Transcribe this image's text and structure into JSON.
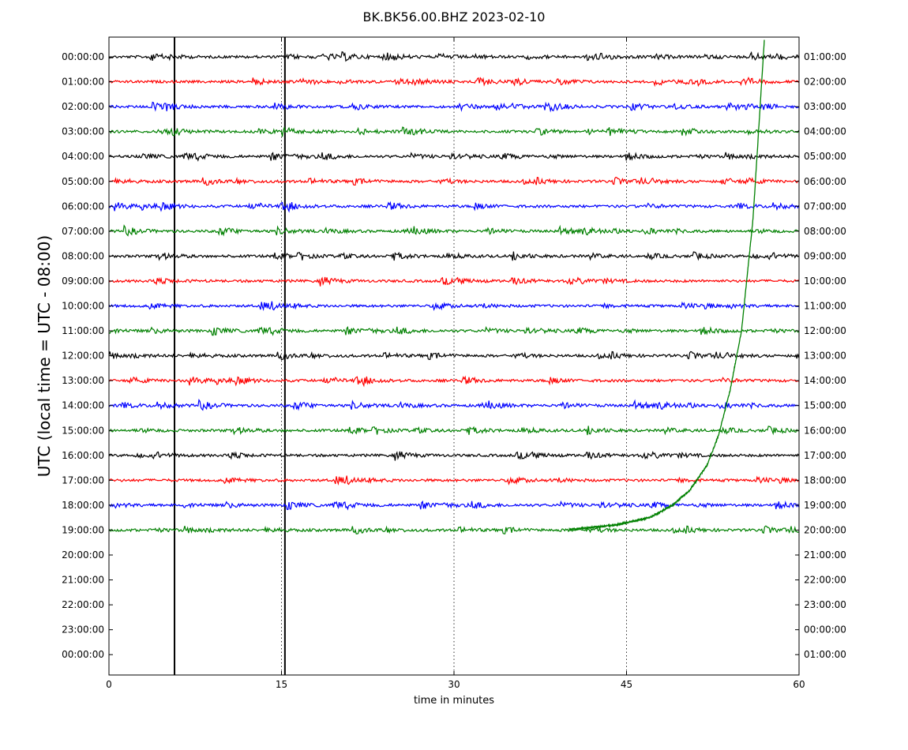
{
  "chart_data": {
    "type": "line",
    "title": "BK.BK56.00.BHZ 2023-02-10",
    "xlabel": "time in minutes",
    "ylabel": "UTC (local time = UTC - 08:00)",
    "xlim": [
      0,
      60
    ],
    "x_ticks": [
      "0",
      "15",
      "30",
      "45",
      "60"
    ],
    "grid_x_minutes": [
      15,
      30,
      45
    ],
    "left_tick_labels": [
      "00:00:00",
      "01:00:00",
      "02:00:00",
      "03:00:00",
      "04:00:00",
      "05:00:00",
      "06:00:00",
      "07:00:00",
      "08:00:00",
      "09:00:00",
      "10:00:00",
      "11:00:00",
      "12:00:00",
      "13:00:00",
      "14:00:00",
      "15:00:00",
      "16:00:00",
      "17:00:00",
      "18:00:00",
      "19:00:00",
      "20:00:00",
      "21:00:00",
      "22:00:00",
      "23:00:00",
      "00:00:00"
    ],
    "right_tick_labels": [
      "01:00:00",
      "02:00:00",
      "03:00:00",
      "04:00:00",
      "05:00:00",
      "06:00:00",
      "07:00:00",
      "08:00:00",
      "09:00:00",
      "10:00:00",
      "11:00:00",
      "12:00:00",
      "13:00:00",
      "14:00:00",
      "15:00:00",
      "16:00:00",
      "17:00:00",
      "18:00:00",
      "19:00:00",
      "20:00:00",
      "21:00:00",
      "22:00:00",
      "23:00:00",
      "00:00:00",
      "01:00:00"
    ],
    "trace_colors": [
      "#000000",
      "#ff0000",
      "#0000ff",
      "#008000"
    ],
    "traces_count": 20,
    "event_markers_minutes": [
      5.7,
      15.3
    ],
    "drift_trace": {
      "row_label": "19:00:00",
      "color": "#008000",
      "rows_above_at_end": 19.8,
      "points": [
        [
          40,
          0.02
        ],
        [
          44,
          0.2
        ],
        [
          47,
          0.5
        ],
        [
          49,
          1.0
        ],
        [
          50.5,
          1.6
        ],
        [
          52,
          2.6
        ],
        [
          53,
          3.8
        ],
        [
          54,
          5.6
        ],
        [
          55,
          8.0
        ],
        [
          56,
          12.5
        ],
        [
          57,
          19.8
        ]
      ]
    }
  }
}
